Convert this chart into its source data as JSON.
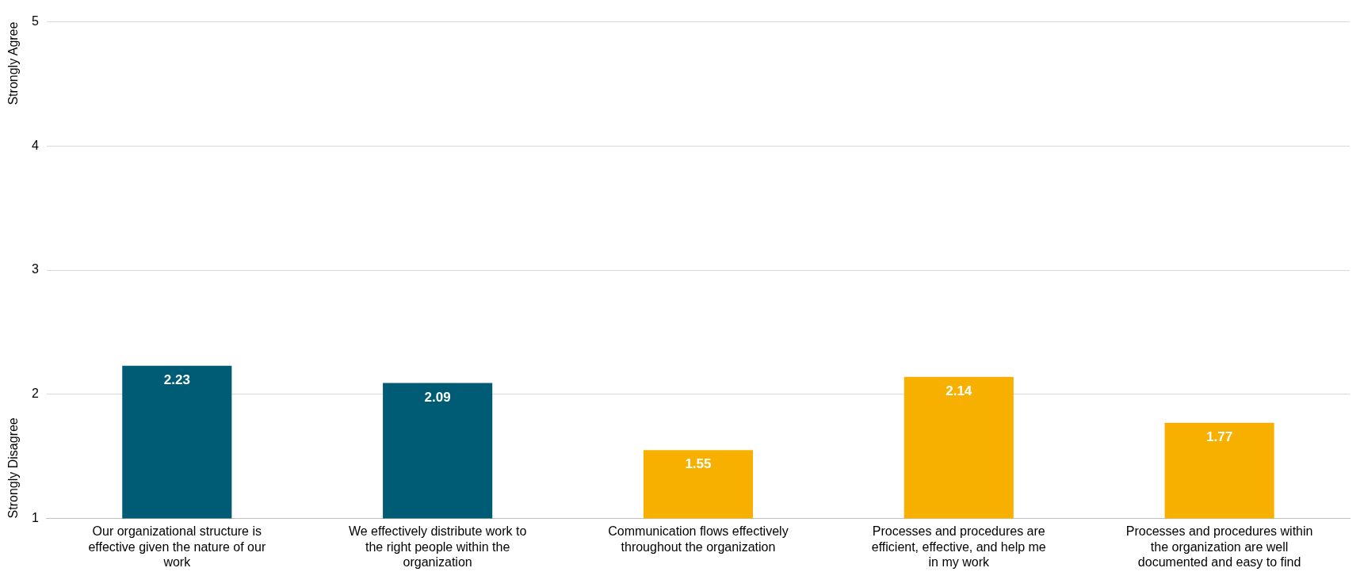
{
  "chart_data": {
    "type": "bar",
    "categories": [
      "Our organizational structure is effective given the nature of our work",
      "We effectively distribute work to the right people within the organization",
      "Communication flows effectively throughout the organization",
      "Processes and procedures are efficient, effective, and help me in my work",
      "Processes and procedures within the organization are well documented and easy to find"
    ],
    "values": [
      2.23,
      2.09,
      1.55,
      2.14,
      1.77
    ],
    "colors": [
      "#005b75",
      "#005b75",
      "#f8b000",
      "#f8b000",
      "#f8b000"
    ],
    "ylim": [
      1,
      5
    ],
    "yticks": [
      1,
      2,
      3,
      4,
      5
    ],
    "grid": "y",
    "data_labels": true,
    "annotations": [
      "Strongly Agree",
      "Strongly Disagree"
    ]
  }
}
